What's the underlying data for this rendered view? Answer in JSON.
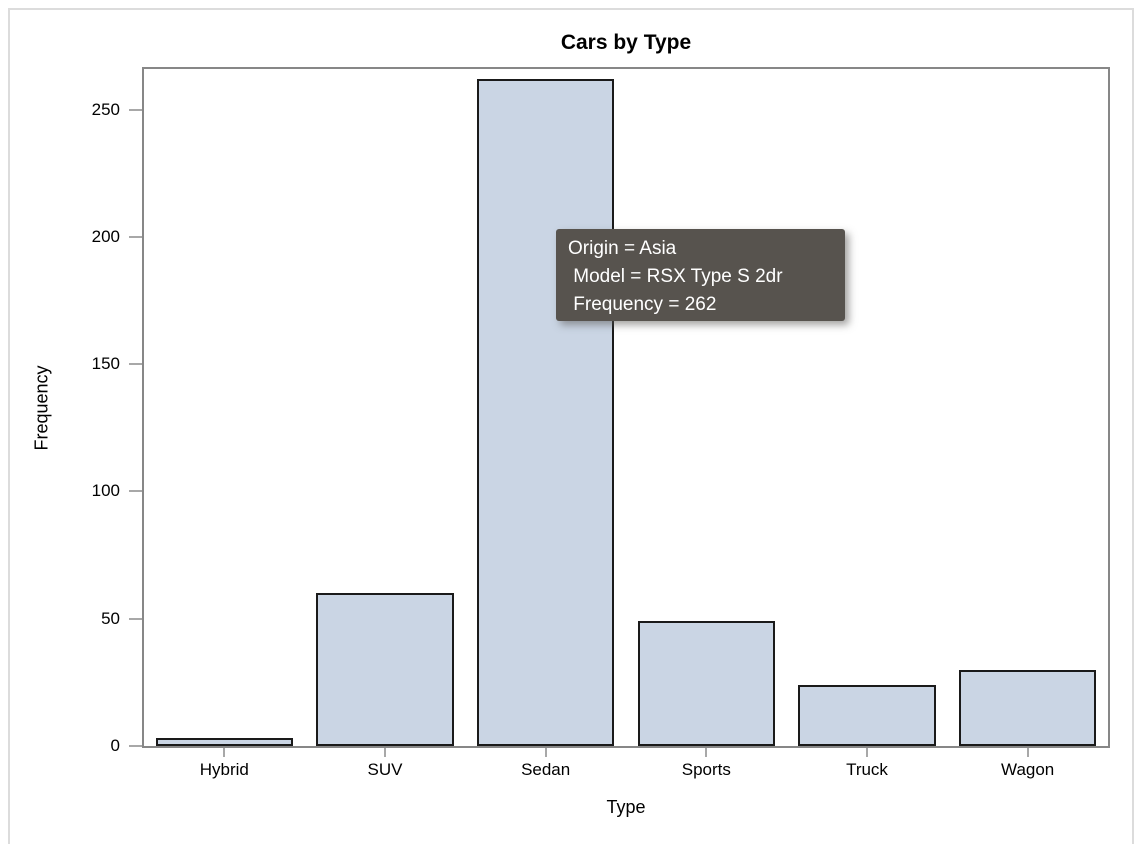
{
  "figure": {
    "title": "Cars by Type"
  },
  "chart_data": {
    "type": "bar",
    "title": "Cars by Type",
    "categories": [
      "Hybrid",
      "SUV",
      "Sedan",
      "Sports",
      "Truck",
      "Wagon"
    ],
    "values": [
      3,
      60,
      262,
      49,
      24,
      30
    ],
    "xlabel": "Type",
    "ylabel": "Frequency",
    "ylim": [
      0,
      266
    ],
    "y_ticks": [
      0,
      50,
      100,
      150,
      200,
      250
    ],
    "grid": false,
    "legend": "none",
    "bar_fill": "#cad5e4",
    "bar_stroke": "#1a1a1a",
    "frame_color": "#878787",
    "tick_color": "#a8a8a8"
  },
  "tooltip": {
    "lines": [
      "Origin = Asia",
      " Model = RSX Type S 2dr",
      " Frequency = 262"
    ],
    "bg_color": "#57534e",
    "text_color": "#ffffff"
  }
}
